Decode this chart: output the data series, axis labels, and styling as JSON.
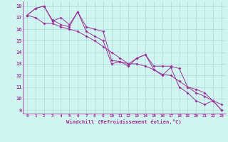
{
  "xlabel": "Windchill (Refroidissement éolien,°C)",
  "background_color": "#d0f5f0",
  "grid_color": "#b0d8d8",
  "line_color": "#993399",
  "x_values": [
    0,
    1,
    2,
    3,
    4,
    5,
    6,
    7,
    8,
    9,
    10,
    11,
    12,
    13,
    14,
    15,
    16,
    17,
    18,
    19,
    20,
    21,
    22,
    23
  ],
  "series1": [
    17.2,
    17.8,
    18.0,
    16.7,
    17.0,
    16.4,
    17.5,
    16.2,
    16.0,
    15.8,
    13.3,
    13.2,
    12.8,
    13.5,
    13.8,
    12.8,
    12.8,
    12.8,
    12.6,
    11.0,
    10.8,
    10.5,
    9.8,
    9.5
  ],
  "series2": [
    17.2,
    17.0,
    16.5,
    16.5,
    16.2,
    16.0,
    15.8,
    15.4,
    15.0,
    14.5,
    14.0,
    13.5,
    13.0,
    13.0,
    12.8,
    12.5,
    12.1,
    12.0,
    11.5,
    11.0,
    10.5,
    10.2,
    9.8,
    9.0
  ],
  "series3": [
    17.2,
    17.8,
    18.0,
    16.8,
    16.4,
    16.2,
    17.5,
    15.8,
    15.4,
    15.0,
    13.0,
    13.2,
    13.0,
    13.5,
    13.8,
    12.5,
    12.0,
    12.7,
    11.0,
    10.5,
    9.8,
    9.5,
    9.8,
    9.0
  ],
  "ylim": [
    8.7,
    18.4
  ],
  "xlim": [
    -0.5,
    23.5
  ],
  "yticks": [
    9,
    10,
    11,
    12,
    13,
    14,
    15,
    16,
    17,
    18
  ],
  "xticks": [
    0,
    1,
    2,
    3,
    4,
    5,
    6,
    7,
    8,
    9,
    10,
    11,
    12,
    13,
    14,
    15,
    16,
    17,
    18,
    19,
    20,
    21,
    22,
    23
  ]
}
